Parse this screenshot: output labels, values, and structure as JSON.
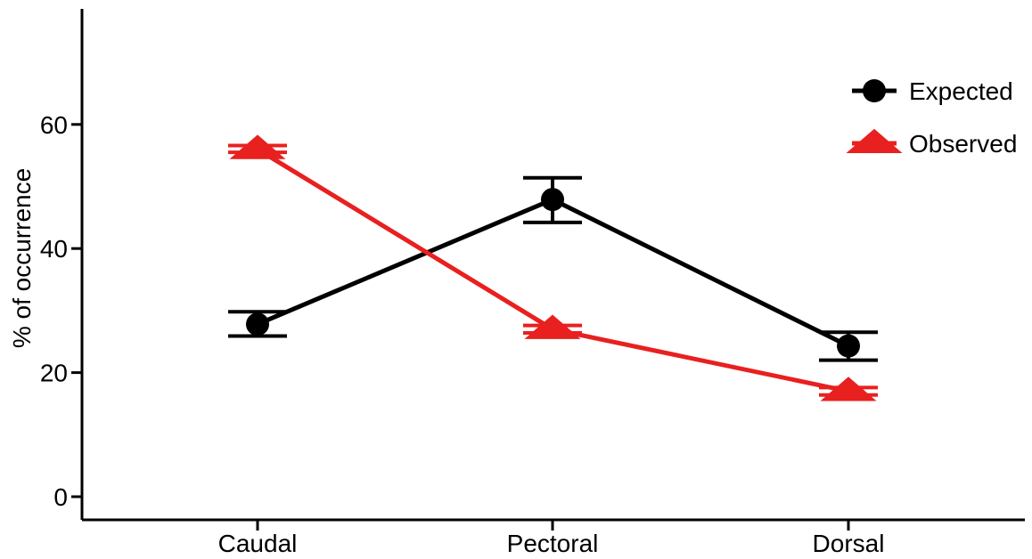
{
  "chart_data": {
    "type": "line",
    "title": "",
    "xlabel": "",
    "ylabel": "% of occurrence",
    "categories": [
      "Caudal",
      "Pectoral",
      "Dorsal"
    ],
    "ylim": [
      0,
      78
    ],
    "yticks": [
      0,
      20,
      40,
      60
    ],
    "grid": false,
    "legend": "top-right",
    "series": [
      {
        "name": "Expected",
        "marker": "circle",
        "color": "#000000",
        "values": [
          27.8,
          47.9,
          24.3
        ],
        "error_low": [
          25.9,
          44.2,
          22.0
        ],
        "error_high": [
          29.8,
          51.4,
          26.5
        ]
      },
      {
        "name": "Observed",
        "marker": "triangle",
        "color": "#e8201f",
        "values": [
          56.0,
          27.0,
          17.0
        ],
        "error_low": [
          55.5,
          26.4,
          16.4
        ],
        "error_high": [
          56.6,
          27.6,
          17.6
        ]
      }
    ]
  }
}
